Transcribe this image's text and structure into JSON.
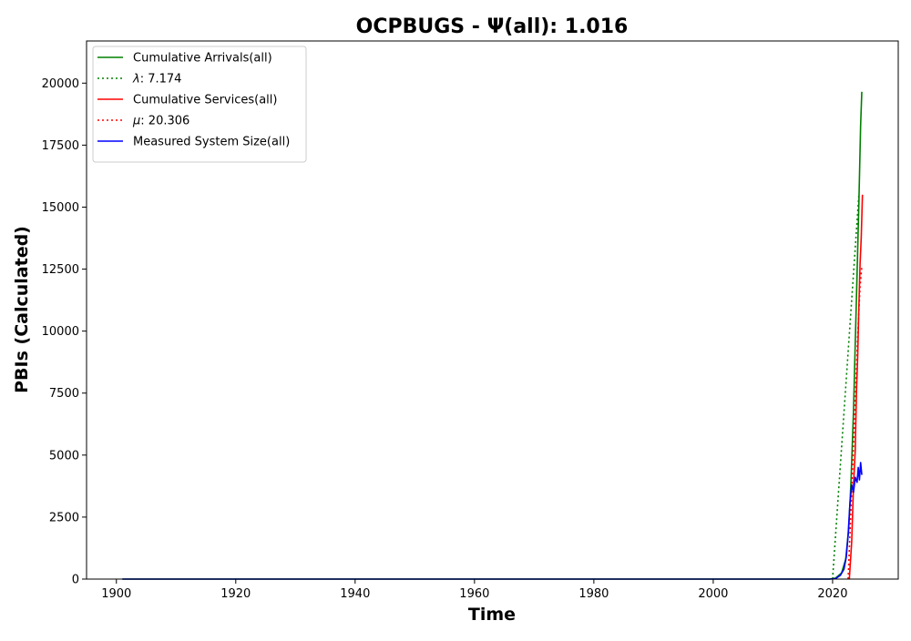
{
  "chart_data": {
    "type": "line",
    "title": "OCPBUGS -  Ψ(all): 1.016",
    "xlabel": "Time",
    "ylabel": "PBIs (Calculated)",
    "xlim": [
      1895,
      2031
    ],
    "ylim": [
      0,
      21700
    ],
    "x_ticks": [
      1900,
      1920,
      1940,
      1960,
      1980,
      2000,
      2020
    ],
    "y_ticks": [
      0,
      2500,
      5000,
      7500,
      10000,
      12500,
      15000,
      17500,
      20000
    ],
    "x_tick_labels": [
      "1900",
      "1920",
      "1940",
      "1960",
      "1980",
      "2000",
      "2020"
    ],
    "y_tick_labels": [
      "0",
      "2500",
      "5000",
      "7500",
      "10000",
      "12500",
      "15000",
      "17500",
      "20000"
    ],
    "grid": false,
    "legend_position": "top-left",
    "series": [
      {
        "name": "Cumulative Arrivals(all)",
        "label_text": "Cumulative Arrivals(all)",
        "color": "#008000",
        "style": "solid",
        "x": [
          1901,
          2019.5,
          2020.5,
          2021.5,
          2022.2,
          2022.7,
          2023.1,
          2023.5,
          2023.8,
          2024.1,
          2024.4,
          2024.7,
          2024.9
        ],
        "y": [
          0,
          0,
          40,
          250,
          800,
          2000,
          4000,
          6800,
          9500,
          12300,
          15200,
          18300,
          19650
        ]
      },
      {
        "name": "lambda",
        "label_text": ": 7.174",
        "label_symbol": "λ",
        "color": "#008000",
        "style": "dotted",
        "x": [
          2020,
          2024.4
        ],
        "y": [
          0,
          15500
        ]
      },
      {
        "name": "Cumulative Services(all)",
        "label_text": "Cumulative Services(all)",
        "color": "#ff0000",
        "style": "solid",
        "x": [
          2022.8,
          2023.2,
          2023.5,
          2023.8,
          2024.0,
          2024.2,
          2024.4,
          2024.6,
          2024.8,
          2025.0
        ],
        "y": [
          0,
          1500,
          3800,
          5200,
          7500,
          9000,
          11000,
          12700,
          13800,
          15500
        ]
      },
      {
        "name": "mu",
        "label_text": ": 20.306",
        "label_symbol": "μ",
        "color": "#ff0000",
        "style": "dotted",
        "x": [
          2022.6,
          2023.3,
          2023.8,
          2024.2,
          2024.6,
          2024.9
        ],
        "y": [
          0,
          4200,
          7200,
          9800,
          11800,
          12600
        ]
      },
      {
        "name": "Measured System Size(all)",
        "label_text": "Measured System Size(all)",
        "color": "#0000ff",
        "style": "solid",
        "x": [
          1901,
          2019.5,
          2020.5,
          2021.3,
          2021.9,
          2022.3,
          2022.6,
          2022.9,
          2023.2,
          2023.5,
          2023.8,
          2024.1,
          2024.3,
          2024.5,
          2024.7,
          2024.9
        ],
        "y": [
          0,
          0,
          20,
          150,
          400,
          900,
          1800,
          3000,
          3800,
          3500,
          4100,
          3900,
          4500,
          4000,
          4700,
          4200
        ]
      }
    ]
  }
}
